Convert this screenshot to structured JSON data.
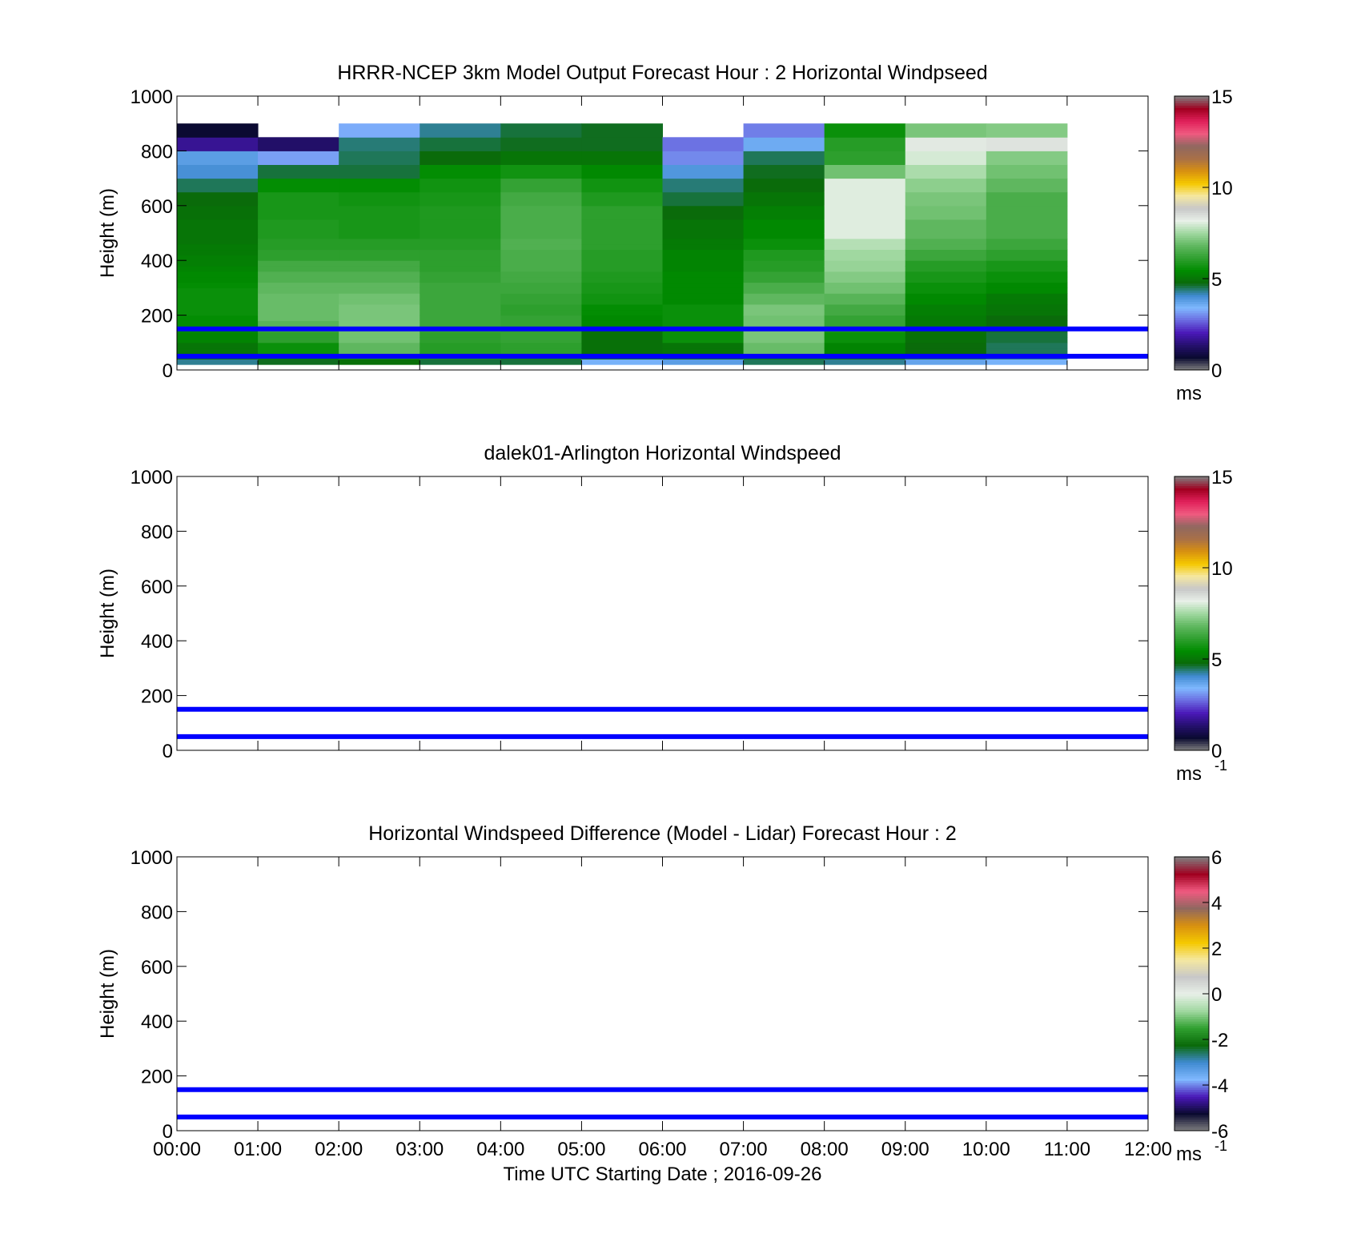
{
  "figure": {
    "x_ticks": [
      "00:00",
      "01:00",
      "02:00",
      "03:00",
      "04:00",
      "05:00",
      "06:00",
      "07:00",
      "08:00",
      "09:00",
      "10:00",
      "11:00",
      "12:00"
    ],
    "x_label": "Time UTC  Starting Date ; 2016-09-26",
    "y_ticks": [
      "0",
      "200",
      "400",
      "600",
      "800",
      "1000"
    ],
    "y_label": "Height (m)"
  },
  "panels": [
    {
      "title": "HRRR-NCEP 3km Model Output   Forecast Hour : 2 Horizontal Windpseed",
      "colorbar": {
        "ticks": [
          "0",
          "5",
          "10",
          "15"
        ],
        "unit": "ms",
        "superscript": ""
      },
      "reference_lines_m": [
        150,
        50
      ]
    },
    {
      "title": "dalek01-Arlington  Horizontal Windspeed",
      "colorbar": {
        "ticks": [
          "0",
          "5",
          "10",
          "15"
        ],
        "unit": "ms",
        "superscript": "-1"
      },
      "reference_lines_m": [
        150,
        50
      ]
    },
    {
      "title": "Horizontal Windspeed Difference (Model - Lidar) Forecast Hour : 2",
      "colorbar": {
        "ticks": [
          "-6",
          "-4",
          "-2",
          "0",
          "2",
          "4",
          "6"
        ],
        "unit": "ms",
        "superscript": "-1"
      },
      "reference_lines_m": [
        150,
        50
      ]
    }
  ],
  "colors": {
    "reference_line": "#0000ff",
    "windspeed_colormap": [
      "#808080",
      "#0a0a30",
      "#25106e",
      "#4a18b8",
      "#6a6ae0",
      "#80b8ff",
      "#3f8ad0",
      "#0a6a0a",
      "#008c00",
      "#30a030",
      "#60b860",
      "#a0d8a0",
      "#e8f0e8",
      "#c8c8c8",
      "#f5e8a0",
      "#f5c800",
      "#d89010",
      "#a87048",
      "#906860",
      "#f05a80",
      "#e0205a",
      "#a00020",
      "#808080"
    ],
    "difference_colormap": [
      "#808080",
      "#0a0a30",
      "#4a18b8",
      "#80b8ff",
      "#3f8ad0",
      "#0a6a0a",
      "#30a030",
      "#a0d8a0",
      "#e8f0e8",
      "#c8c8c8",
      "#f5e8a0",
      "#f5c800",
      "#d89010",
      "#906860",
      "#f05a80",
      "#a00020",
      "#808080"
    ]
  },
  "chart_data": [
    {
      "type": "heatmap",
      "title": "HRRR-NCEP 3km Model Output   Forecast Hour : 2 Horizontal Windpseed",
      "xlabel": "Time UTC  Starting Date ; 2016-09-26",
      "ylabel": "Height (m)",
      "x_range_hours": [
        0,
        12
      ],
      "ylim": [
        0,
        1000
      ],
      "column_start_hours": [
        0,
        1,
        2,
        3,
        4,
        5,
        6,
        7,
        8,
        9,
        10
      ],
      "column_width_hours": 1,
      "row_bottoms_m": [
        20,
        40,
        60,
        80,
        100,
        120,
        140,
        160,
        180,
        200,
        220,
        240,
        260,
        280,
        300,
        320,
        340,
        360,
        380,
        400,
        420,
        440,
        460,
        480,
        500,
        550,
        600,
        650,
        700,
        750,
        800,
        850,
        900,
        950
      ],
      "row_tops_m": [
        40,
        60,
        80,
        100,
        120,
        140,
        160,
        180,
        200,
        220,
        240,
        260,
        280,
        300,
        320,
        340,
        360,
        380,
        400,
        420,
        440,
        460,
        480,
        500,
        550,
        600,
        650,
        700,
        750,
        800,
        850,
        900,
        950,
        1000
      ],
      "values_ms": [
        [
          4.3,
          4.8,
          5.0,
          5.0,
          5.3,
          5.3,
          5.5,
          5.5,
          5.5,
          5.6,
          5.6,
          5.6,
          5.6,
          5.6,
          5.5,
          5.4,
          5.4,
          5.3,
          5.2,
          5.2,
          5.1,
          5.1,
          5.0,
          5.0,
          5.0,
          4.9,
          4.8,
          4.5,
          4.0,
          3.8,
          1.7,
          0.7
        ],
        [
          4.7,
          5.4,
          5.6,
          5.6,
          6.1,
          6.1,
          6.4,
          6.7,
          6.9,
          6.9,
          6.9,
          6.9,
          6.9,
          6.8,
          6.8,
          6.6,
          6.6,
          6.4,
          6.4,
          6.1,
          6.1,
          6.0,
          6.0,
          5.9,
          5.9,
          5.8,
          5.8,
          5.5,
          4.6,
          3.2,
          1.3
        ],
        [
          4.9,
          5.8,
          6.8,
          6.8,
          7.0,
          7.0,
          7.0,
          7.1,
          7.1,
          7.1,
          7.1,
          7.0,
          7.0,
          6.8,
          6.8,
          6.6,
          6.6,
          6.4,
          6.4,
          6.1,
          6.1,
          6.0,
          6.0,
          5.8,
          5.8,
          5.8,
          5.7,
          5.5,
          4.6,
          4.5,
          4.4,
          3.3
        ],
        [
          4.6,
          5.9,
          6.0,
          6.0,
          6.1,
          6.1,
          6.3,
          6.3,
          6.3,
          6.3,
          6.3,
          6.3,
          6.3,
          6.3,
          6.3,
          6.2,
          6.2,
          6.1,
          6.1,
          6.1,
          6.1,
          6.0,
          6.0,
          5.9,
          5.9,
          5.9,
          5.8,
          5.7,
          5.5,
          4.8,
          4.6,
          4.3
        ],
        [
          4.6,
          5.7,
          6.1,
          6.1,
          6.2,
          6.2,
          6.2,
          6.2,
          6.2,
          6.1,
          6.1,
          6.2,
          6.2,
          6.3,
          6.3,
          6.4,
          6.4,
          6.5,
          6.5,
          6.5,
          6.5,
          6.6,
          6.6,
          6.5,
          6.5,
          6.5,
          6.4,
          6.2,
          5.7,
          5.0,
          4.7,
          4.6
        ],
        [
          3.5,
          4.8,
          4.9,
          4.9,
          4.9,
          4.9,
          5.0,
          5.4,
          5.4,
          5.5,
          5.5,
          5.7,
          5.7,
          5.8,
          5.8,
          5.9,
          5.9,
          6.0,
          6.0,
          6.0,
          6.0,
          6.1,
          6.1,
          6.1,
          6.1,
          6.1,
          5.9,
          5.7,
          5.4,
          5.0,
          4.7,
          4.7
        ],
        [
          3.8,
          4.8,
          5.0,
          5.0,
          5.6,
          5.6,
          5.6,
          5.6,
          5.6,
          5.6,
          5.6,
          5.4,
          5.4,
          5.4,
          5.4,
          5.4,
          5.4,
          5.3,
          5.3,
          5.3,
          5.3,
          5.1,
          5.1,
          5.0,
          5.0,
          4.8,
          4.6,
          4.4,
          3.9,
          3.0,
          2.8
        ],
        [
          4.5,
          5.5,
          6.9,
          6.9,
          7.1,
          7.1,
          7.1,
          7.0,
          7.0,
          7.1,
          7.1,
          6.8,
          6.8,
          6.5,
          6.5,
          6.2,
          6.2,
          6.0,
          6.0,
          5.9,
          5.9,
          5.6,
          5.6,
          5.4,
          5.4,
          5.2,
          5.0,
          4.8,
          4.7,
          4.5,
          3.6,
          2.9
        ],
        [
          4.3,
          5.0,
          5.3,
          5.3,
          5.6,
          5.6,
          6.0,
          6.2,
          6.2,
          6.4,
          6.4,
          6.7,
          6.7,
          7.0,
          7.0,
          7.2,
          7.2,
          7.4,
          7.4,
          7.5,
          7.5,
          7.7,
          7.7,
          8.1,
          8.1,
          8.1,
          8.1,
          8.1,
          7.0,
          6.1,
          6.0,
          5.6
        ],
        [
          3.7,
          4.6,
          4.8,
          4.8,
          4.9,
          4.9,
          5.0,
          5.1,
          5.1,
          5.2,
          5.2,
          5.4,
          5.4,
          5.6,
          5.6,
          5.8,
          5.8,
          6.0,
          6.0,
          6.3,
          6.3,
          6.6,
          6.6,
          6.8,
          6.8,
          7.0,
          7.1,
          7.3,
          7.6,
          8.0,
          8.3,
          7.1
        ],
        [
          3.5,
          4.4,
          4.5,
          4.5,
          4.6,
          4.6,
          4.7,
          4.8,
          4.8,
          5.0,
          5.0,
          5.1,
          5.1,
          5.4,
          5.4,
          5.6,
          5.6,
          5.8,
          5.8,
          6.1,
          6.1,
          6.3,
          6.3,
          6.5,
          6.5,
          6.5,
          6.5,
          6.8,
          7.0,
          7.2,
          8.4,
          7.2
        ]
      ],
      "colorbar": {
        "range": [
          0,
          15
        ],
        "ticks": [
          0,
          5,
          10,
          15
        ],
        "unit": "ms"
      },
      "reference_lines_m": [
        150,
        50
      ]
    },
    {
      "type": "heatmap",
      "title": "dalek01-Arlington  Horizontal Windspeed",
      "xlabel": "",
      "ylabel": "Height (m)",
      "x_range_hours": [
        0,
        12
      ],
      "ylim": [
        0,
        1000
      ],
      "values_ms": [],
      "colorbar": {
        "range": [
          0,
          15
        ],
        "ticks": [
          0,
          5,
          10,
          15
        ],
        "unit": "ms-1"
      },
      "reference_lines_m": [
        150,
        50
      ]
    },
    {
      "type": "heatmap",
      "title": "Horizontal Windspeed Difference (Model - Lidar) Forecast Hour : 2",
      "xlabel": "Time UTC  Starting Date ; 2016-09-26",
      "ylabel": "Height (m)",
      "x_range_hours": [
        0,
        12
      ],
      "ylim": [
        0,
        1000
      ],
      "values_ms": [],
      "colorbar": {
        "range": [
          -6,
          6
        ],
        "ticks": [
          -6,
          -4,
          -2,
          0,
          2,
          4,
          6
        ],
        "unit": "ms-1"
      },
      "reference_lines_m": [
        150,
        50
      ]
    }
  ]
}
